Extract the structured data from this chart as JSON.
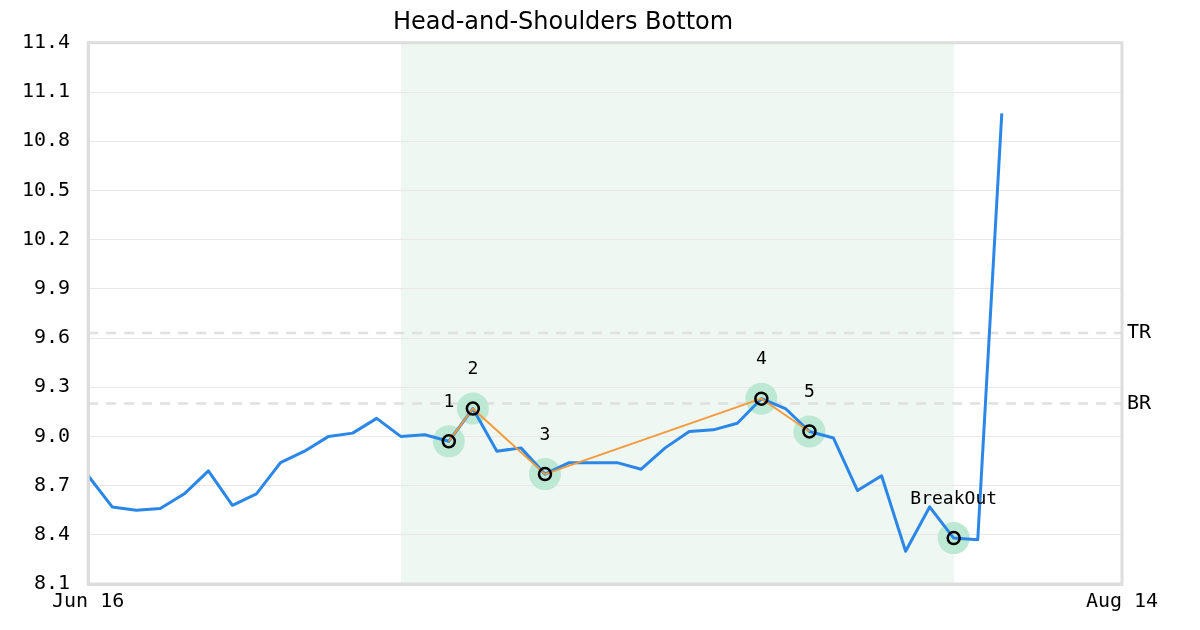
{
  "chart_data": {
    "type": "line",
    "title": "Head-and-Shoulders Bottom",
    "categories": [
      "Jun 16",
      null,
      null,
      null,
      null,
      null,
      null,
      null,
      null,
      null,
      null,
      null,
      null,
      null,
      null,
      null,
      null,
      null,
      null,
      null,
      null,
      null,
      null,
      null,
      null,
      null,
      null,
      null,
      null,
      null,
      null,
      null,
      null,
      null,
      null,
      null,
      null,
      null,
      null,
      null,
      null,
      null,
      null,
      "Aug 14"
    ],
    "series": [
      {
        "color": "#2a87e8",
        "values": [
          8.76,
          8.57,
          8.55,
          8.56,
          8.65,
          8.79,
          8.58,
          8.65,
          8.84,
          8.91,
          9.0,
          9.02,
          9.11,
          9.0,
          9.01,
          8.97,
          9.17,
          8.91,
          8.93,
          8.77,
          8.84,
          8.84,
          8.84,
          8.8,
          8.93,
          9.03,
          9.04,
          9.08,
          9.23,
          9.17,
          9.03,
          8.99,
          8.67,
          8.76,
          8.3,
          8.57,
          8.38,
          8.37,
          10.97,
          null,
          null,
          null,
          null,
          null
        ]
      },
      {
        "type": "line",
        "color": "#f59a3c",
        "marker": "circle",
        "values": [
          null,
          null,
          null,
          null,
          null,
          null,
          null,
          null,
          null,
          null,
          null,
          null,
          null,
          null,
          null,
          8.97,
          9.17,
          null,
          null,
          8.77,
          null,
          null,
          null,
          null,
          null,
          null,
          null,
          null,
          9.23,
          null,
          9.03,
          null,
          null,
          null,
          null,
          null,
          null,
          null,
          null,
          null,
          null,
          null,
          null,
          null
        ]
      },
      {
        "type": "scatter",
        "color": "#bde8d3",
        "marker": "circle",
        "values": [
          null,
          null,
          null,
          null,
          null,
          null,
          null,
          null,
          null,
          null,
          null,
          null,
          null,
          null,
          null,
          null,
          null,
          null,
          null,
          null,
          null,
          null,
          null,
          null,
          null,
          null,
          null,
          null,
          null,
          null,
          null,
          null,
          null,
          null,
          null,
          null,
          8.38,
          null,
          null,
          null,
          null,
          null,
          null,
          null
        ]
      }
    ],
    "annotations": [
      {
        "text": "1",
        "y": 8.97
      },
      {
        "text": "2",
        "y": 9.17
      },
      {
        "text": "3",
        "y": 8.77
      },
      {
        "text": "4",
        "y": 9.23
      },
      {
        "text": "5",
        "y": 9.03
      },
      {
        "text": "BreakOut",
        "y": 8.38
      }
    ],
    "ylim": [
      8.1,
      11.4
    ],
    "yticks": [
      {
        "value": 8.1,
        "label": "8.1"
      },
      {
        "value": 8.4,
        "label": "8.4"
      },
      {
        "value": 8.7,
        "label": "8.7"
      },
      {
        "value": 9.0,
        "label": "9.0"
      },
      {
        "value": 9.3,
        "label": "9.3"
      },
      {
        "value": 9.6,
        "label": "9.6"
      },
      {
        "value": 9.9,
        "label": "9.9"
      },
      {
        "value": 10.2,
        "label": "10.2"
      },
      {
        "value": 10.5,
        "label": "10.5"
      },
      {
        "value": 10.8,
        "label": "10.8"
      },
      {
        "value": 11.1,
        "label": "11.1"
      },
      {
        "value": 11.4,
        "label": "11.4"
      }
    ],
    "grid": "y",
    "legend": false,
    "ref_lines": [
      {
        "axis": "y",
        "value": 9.63,
        "label": "TR",
        "color": "#e0e0e0",
        "line_style": "dashed"
      },
      {
        "axis": "y",
        "value": 9.2,
        "label": "BR",
        "color": "#e0e0e0",
        "line_style": "dashed"
      }
    ]
  }
}
